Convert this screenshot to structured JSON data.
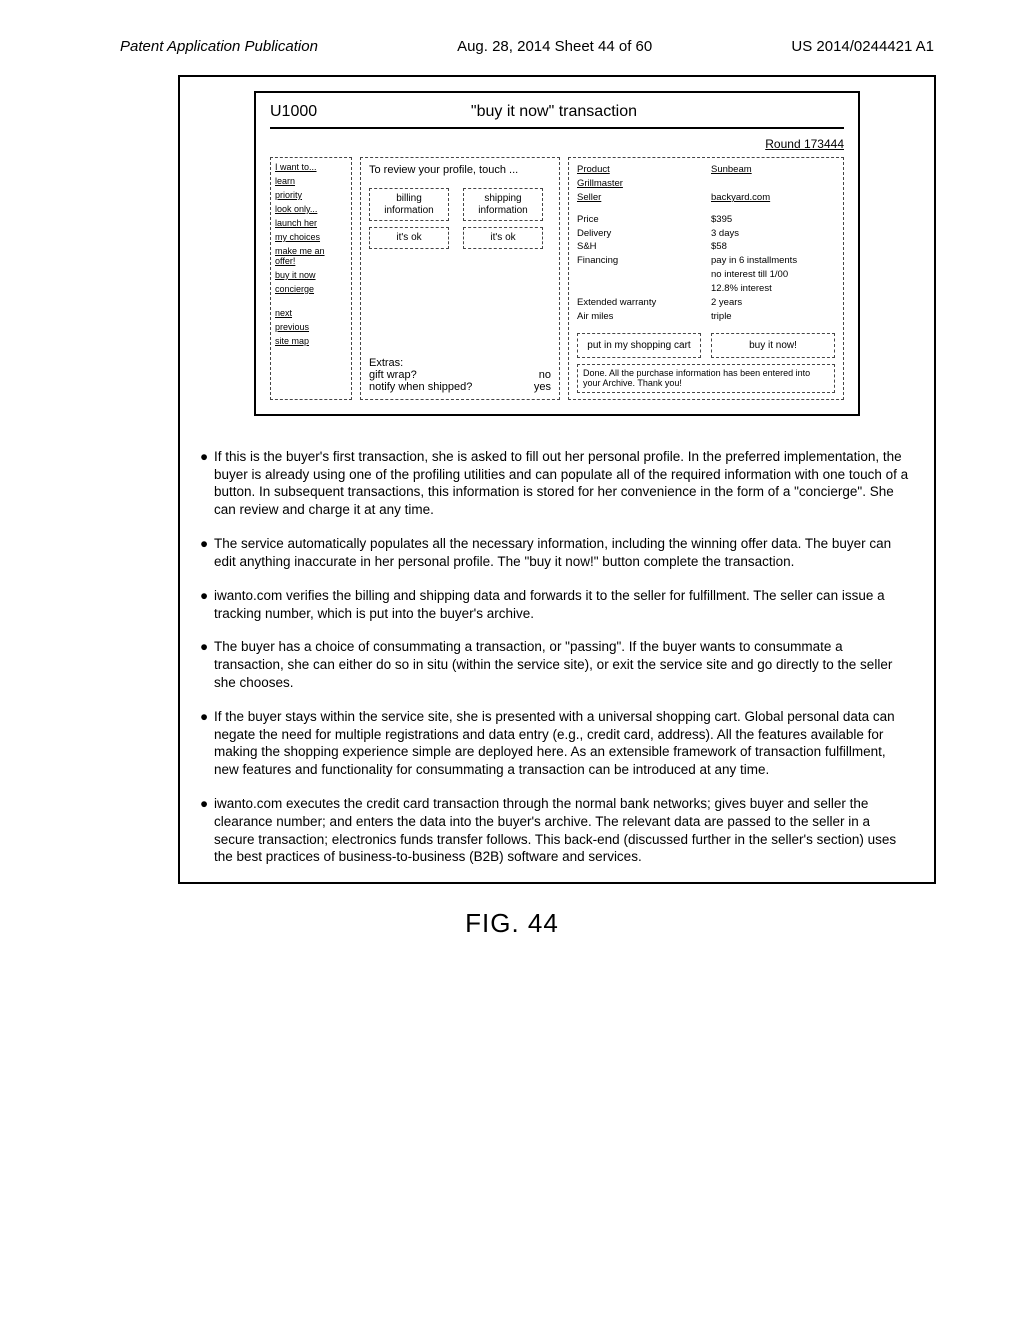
{
  "header": {
    "left": "Patent Application Publication",
    "center": "Aug. 28, 2014  Sheet 44 of 60",
    "right": "US 2014/0244421 A1"
  },
  "figure": {
    "u1000": "U1000",
    "title": "\"buy it now\" transaction",
    "round": "Round 173444",
    "sidebar_header": "I want to...",
    "sidebar": [
      "learn",
      "priority",
      "look only...",
      "launch her",
      "my choices",
      "make me an offer!",
      "buy it now",
      "concierge"
    ],
    "sidebar2": [
      "next",
      "previous",
      "site map"
    ],
    "center": {
      "review": "To  review your profile, touch ...",
      "billing": "billing information",
      "shipping": "shipping information",
      "ok1": "it's ok",
      "ok2": "it's ok",
      "extras_label": "Extras:",
      "gift_wrap_label": "gift wrap?",
      "gift_wrap_val": "no",
      "notify_label": "notify when shipped?",
      "notify_val": "yes"
    },
    "right": {
      "product_l": "Product",
      "product_v": "Sunbeam",
      "grill_l": "Grillmaster",
      "seller_l": "Seller",
      "seller_v": "backyard.com",
      "price_l": "Price",
      "price_v": "$395",
      "delivery_l": "Delivery",
      "delivery_v": "3 days",
      "sh_l": "S&H",
      "sh_v": "$58",
      "fin_l": "Financing",
      "fin_v": "pay in 6 installments",
      "fin_v2": "no interest till 1/00",
      "fin_v3": "12.8% interest",
      "ext_l": "Extended warranty",
      "ext_v": "2 years",
      "air_l": "Air miles",
      "air_v": "triple",
      "cart_btn": "put in my shopping cart",
      "buy_btn": "buy it now!",
      "done_msg": "Done. All the purchase information has been entered into your Archive. Thank you!"
    }
  },
  "bullets": [
    "If this is the buyer's first transaction, she is asked to fill out her personal profile. In the preferred implementation, the buyer is already using one of the profiling utilities and can populate all of the required information with one touch of a button. In subsequent transactions, this information is stored for her convenience in the form of a \"concierge\". She can review and charge it at any time.",
    "The service automatically populates all the necessary information, including the winning offer data. The buyer can edit anything inaccurate in her personal profile. The \"buy it now!\" button complete the transaction.",
    "iwanto.com verifies the billing and shipping  data and forwards it to the seller for fulfillment. The seller can issue a tracking number, which is put into the buyer's archive.",
    "The buyer has a choice of consummating a transaction, or \"passing\". If the buyer wants to consummate a transaction, she can either do so in situ (within the service site), or exit the service site and go directly to the seller she chooses.",
    "If the buyer stays within the service site, she is presented with a universal shopping cart. Global personal data can negate the need for multiple registrations and data entry (e.g., credit card, address). All the features available for making the shopping experience simple are deployed here. As an extensible framework of transaction fulfillment, new features and functionality for consummating a transaction can be introduced at any time.",
    "iwanto.com executes the credit card transaction through the normal bank networks; gives buyer and seller the clearance number; and enters the data into the buyer's archive. The relevant data are passed to the seller in a secure transaction; electronics funds transfer follows. This back-end (discussed further in the seller's section) uses the best practices of business-to-business (B2B) software and services."
  ],
  "fig_label": "FIG. 44"
}
